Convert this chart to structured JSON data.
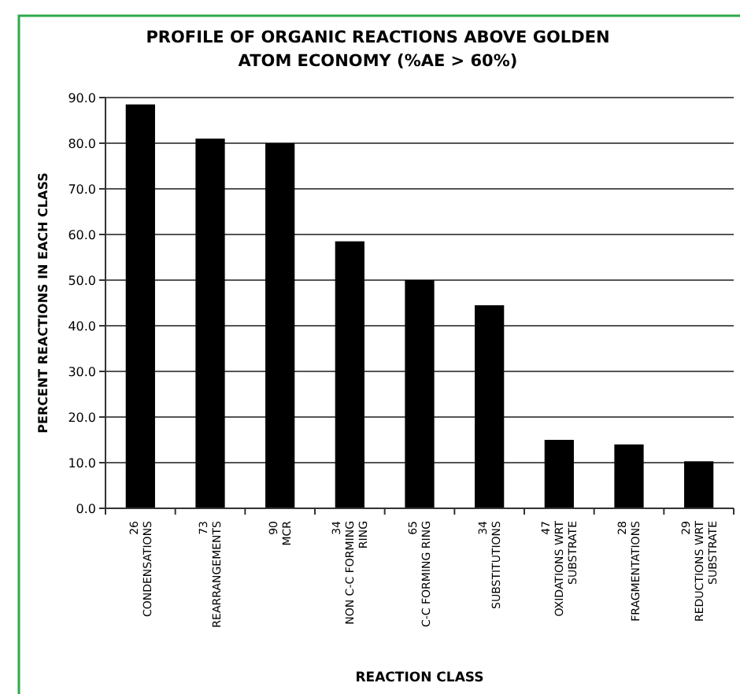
{
  "chart_data": {
    "type": "bar",
    "title": "PROFILE OF ORGANIC REACTIONS ABOVE GOLDEN\nATOM ECONOMY (%AE > 60%)",
    "xlabel": "REACTION CLASS",
    "ylabel": "PERCENT REACTIONS IN EACH CLASS",
    "categories": [
      "26\nCONDENSATIONS",
      "73\nREARRANGEMENTS",
      "90\nMCR",
      "34\nNON C-C FORMING\nRING",
      "65\nC-C FORMING RING",
      "34\nSUBSTITUTIONS",
      "47\nOXIDATIONS WRT\nSUBSTRATE",
      "28\nFRAGMENTATIONS",
      "29\nREDUCTIONS WRT\nSUBSTRATE"
    ],
    "values": [
      88.5,
      81,
      80,
      58.5,
      50,
      44.5,
      15,
      14,
      10.3
    ],
    "color": "#000000",
    "ylim": [
      0,
      90
    ],
    "yticks": [
      {
        "value": 0,
        "label": "0.0"
      },
      {
        "value": 10,
        "label": "10.0"
      },
      {
        "value": 20,
        "label": "20.0"
      },
      {
        "value": 30,
        "label": "30.0"
      },
      {
        "value": 40,
        "label": "40.0"
      },
      {
        "value": 50,
        "label": "50.0"
      },
      {
        "value": 60,
        "label": "60.0"
      },
      {
        "value": 70,
        "label": "70.0"
      },
      {
        "value": 80,
        "label": "80.0"
      },
      {
        "value": 90,
        "label": "90.0"
      }
    ],
    "grid": "y"
  }
}
